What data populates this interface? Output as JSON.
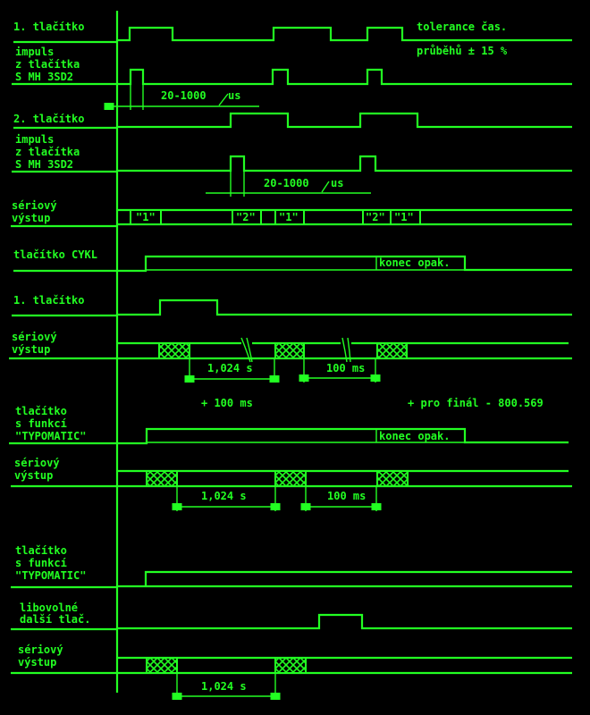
{
  "colors": {
    "background": "#000000",
    "foreground": "#22ff22"
  },
  "rows": {
    "r1": {
      "label": [
        "1. tlačítko"
      ]
    },
    "r2": {
      "label": [
        "impuls",
        "z tlačítka",
        "S MH 3SD2"
      ],
      "dimension": "20-1000",
      "unit": "us"
    },
    "r3": {
      "label": [
        "2. tlačítko"
      ]
    },
    "r4": {
      "label": [
        "impuls",
        "z tlačítka",
        "S MH 3SD2"
      ],
      "dimension": "20-1000",
      "unit": "us"
    },
    "r5": {
      "label": [
        "sériový",
        "výstup"
      ],
      "codes": [
        "\"1\"",
        "\"2\"",
        "\"1\"",
        "\"2\"",
        "\"1\""
      ]
    },
    "r6": {
      "label": [
        "tlačítko CYKL"
      ],
      "end_note": "konec opak."
    },
    "r7": {
      "label": [
        "1. tlačítko"
      ]
    },
    "r8": {
      "label": [
        "sériový",
        "výstup"
      ],
      "dim1": "1,024 s",
      "dim2": "100 ms"
    },
    "r9": {
      "label": [
        "tlačítko",
        "s funkcí",
        "\"TYPOMATIC\""
      ],
      "end_note": "konec opak."
    },
    "r10": {
      "label": [
        "sériový",
        "výstup"
      ],
      "dim1": "1,024 s",
      "dim2": "100 ms"
    },
    "r11": {
      "label": [
        "tlačítko",
        "s funkcí",
        "\"TYPOMATIC\""
      ]
    },
    "r12": {
      "label": [
        "libovolné",
        "další tlač."
      ]
    },
    "r13": {
      "label": [
        "sériový",
        "výstup"
      ],
      "dim1": "1,024 s"
    }
  },
  "notes": {
    "tolerance_1": "tolerance čas.",
    "tolerance_2": "průběhů ± 15 %",
    "plus_100": "+ 100 ms",
    "final": "+ pro finál - 800.569"
  }
}
